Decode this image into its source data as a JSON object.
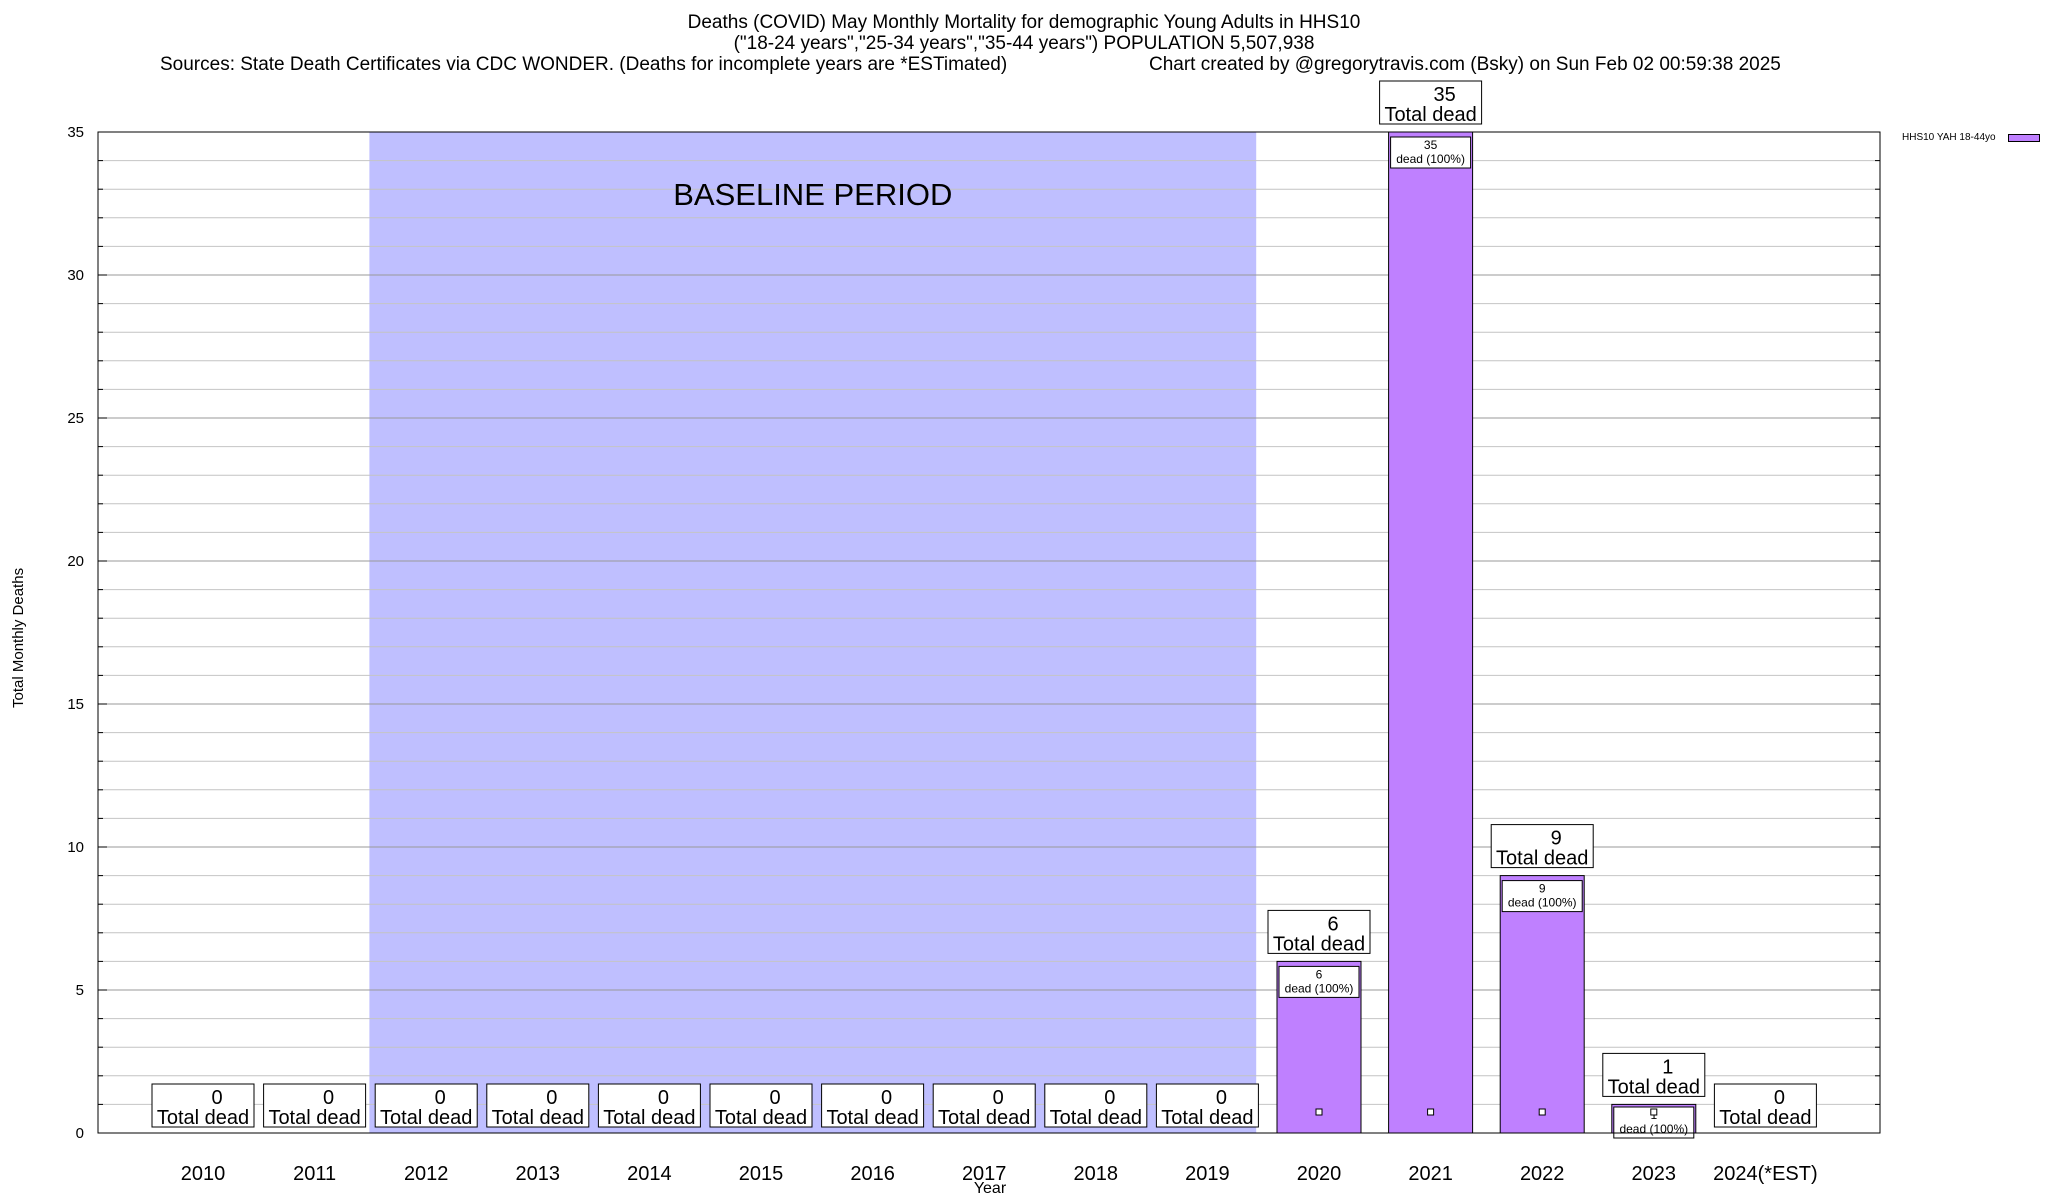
{
  "chart_data": {
    "type": "bar",
    "title_lines": [
      "Deaths (COVID) May Monthly Mortality for demographic Young Adults in HHS10",
      "(\"18-24 years\",\"25-34 years\",\"35-44 years\") POPULATION 5,507,938"
    ],
    "source_text": "Sources: State Death Certificates via CDC WONDER. (Deaths for incomplete years are *ESTimated)",
    "credit_text": "Chart created by @gregorytravis.com (Bsky) on Sun Feb 02 00:59:38 2025",
    "xlabel": "Year",
    "ylabel": "Total Monthly Deaths",
    "ylim": [
      0,
      35
    ],
    "yticks": [
      0,
      5,
      10,
      15,
      20,
      25,
      30,
      35
    ],
    "y_minor_step": 1,
    "categories": [
      "2010",
      "2011",
      "2012",
      "2013",
      "2014",
      "2015",
      "2016",
      "2017",
      "2018",
      "2019",
      "2020",
      "2021",
      "2022",
      "2023",
      "2024(*EST)"
    ],
    "series": [
      {
        "name": "HHS10 YAH 18-44yo",
        "color": "#bf80ff",
        "values": [
          0,
          0,
          0,
          0,
          0,
          0,
          0,
          0,
          0,
          0,
          6,
          35,
          9,
          1,
          0
        ]
      }
    ],
    "total_label_suffix": "Total dead",
    "inner_label_suffix": "dead (100%)",
    "baseline": {
      "label": "BASELINE PERIOD",
      "start": "2012",
      "end": "2019",
      "color": "#bfbfff"
    },
    "legend_position": "top-right",
    "grid": true
  }
}
